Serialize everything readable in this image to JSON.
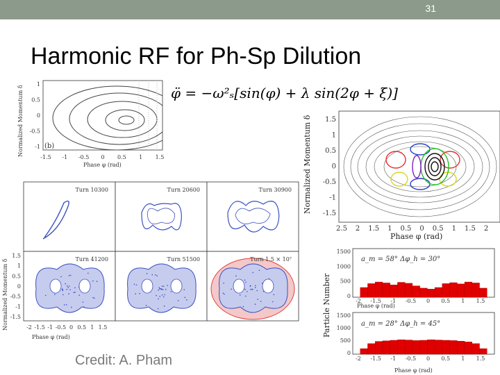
{
  "slide": {
    "number": "31",
    "title": "Harmonic RF for Ph-Sp Dilution",
    "credit": "Credit: A. Pham",
    "formula": "φ̈ = −ω²ₛ[sin(φ) + λ sin(2φ + ξ)]"
  },
  "colors": {
    "topbar": "#8c9a8c",
    "scatter": "#3a4fc0",
    "histogram": "#e00000"
  },
  "top_left_plot": {
    "ylabel": "Normalized Momentum δ",
    "xlabel": "Phase φ (rad)",
    "panel_label": "(b)",
    "y_ticks": [
      "1",
      "0.5",
      "0",
      "-0.5",
      "-1"
    ],
    "x_ticks": [
      "-1.5",
      "-1",
      "-0.5",
      "0",
      "0.5",
      "1",
      "1.5"
    ]
  },
  "turn_panels": {
    "ylabel": "Normalized Momentum δ",
    "xlabel": "Phase φ (rad)",
    "labels": [
      "Turn 10300",
      "Turn 20600",
      "Turn 30900",
      "Turn 41200",
      "Turn 51500",
      "Turn 1.5 × 10⁷"
    ],
    "y_ticks": [
      "1.5",
      "1",
      "0.5",
      "0",
      "-0.5",
      "-1",
      "-1.5"
    ],
    "x_ticks": [
      "-2",
      "-1.5",
      "-1",
      "-0.5",
      "0",
      "0.5",
      "1",
      "1.5"
    ]
  },
  "right_plot": {
    "ylabel": "Normalized Momentum δ",
    "xlabel": "Phase φ (rad)",
    "y_ticks": [
      "1.5",
      "1",
      "0.5",
      "0",
      "-0.5",
      "-1",
      "-1.5"
    ],
    "x_ticks": [
      "2.5",
      "2",
      "1.5",
      "1",
      "0.5",
      "0",
      "0.5",
      "1",
      "1.5",
      "2"
    ]
  },
  "histograms": {
    "ylabel": "Particle Number",
    "xlabel": "Phase φ (rad)",
    "x_ticks": [
      "-2",
      "-1.5",
      "-1",
      "-0.5",
      "0",
      "0.5",
      "1",
      "1.5"
    ],
    "y_ticks": [
      "1500",
      "1000",
      "500",
      "0"
    ],
    "top_label": "a_m = 58° Δφ_h = 30°",
    "bottom_label": "a_m = 28° Δφ_h = 45°"
  },
  "chart_data": [
    {
      "type": "bar",
      "title": "a_m = 58° Δφ_h = 30°",
      "xlabel": "Phase φ (rad)",
      "ylabel": "Particle Number",
      "xlim": [
        -2,
        1.8
      ],
      "ylim": [
        0,
        1500
      ],
      "x": [
        -1.7,
        -1.5,
        -1.3,
        -1.1,
        -0.9,
        -0.7,
        -0.5,
        -0.3,
        -0.1,
        0.1,
        0.3,
        0.5,
        0.7,
        0.9,
        1.1,
        1.3,
        1.5
      ],
      "values": [
        300,
        420,
        470,
        440,
        380,
        460,
        430,
        350,
        280,
        250,
        300,
        420,
        450,
        410,
        470,
        440,
        280
      ]
    },
    {
      "type": "bar",
      "title": "a_m = 28° Δφ_h = 45°",
      "xlabel": "Phase φ (rad)",
      "ylabel": "Particle Number",
      "xlim": [
        -2,
        1.8
      ],
      "ylim": [
        0,
        1500
      ],
      "x": [
        -1.7,
        -1.5,
        -1.3,
        -1.1,
        -0.9,
        -0.7,
        -0.5,
        -0.3,
        -0.1,
        0.1,
        0.3,
        0.5,
        0.7,
        0.9,
        1.1,
        1.3,
        1.5
      ],
      "values": [
        200,
        380,
        460,
        480,
        500,
        520,
        510,
        490,
        500,
        520,
        510,
        500,
        490,
        470,
        440,
        380,
        200
      ]
    }
  ]
}
